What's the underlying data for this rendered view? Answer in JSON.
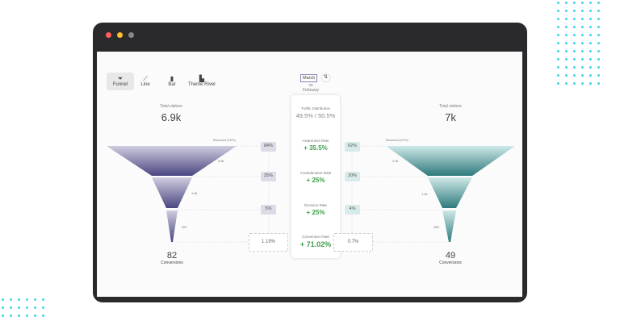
{
  "toolbar": {
    "tabs": [
      {
        "label": "Funnel",
        "icon": "funnel-icon",
        "active": true
      },
      {
        "label": "Line",
        "icon": "line-chart-icon"
      },
      {
        "label": "Bar",
        "icon": "bar-chart-icon"
      },
      {
        "label": "Theme River",
        "icon": "area-chart-icon"
      }
    ]
  },
  "compare": {
    "current": "March",
    "vs": "vs",
    "previous": "February"
  },
  "left": {
    "total_label": "Total visitors",
    "total": "6.9k",
    "bounced": "Bounced (15%)",
    "stages": [
      "5.8k",
      "1.8k",
      "357"
    ],
    "rates": [
      "84%",
      "25%",
      "5%"
    ],
    "conversion_rate": "1.19%",
    "conversions": "82",
    "conversions_label": "Conversions",
    "color": "#6b6898"
  },
  "right": {
    "total_label": "Total visitors",
    "total": "7k",
    "bounced": "Bounced (37%)",
    "stages": [
      "4.4k",
      "1.4k",
      "285"
    ],
    "rates": [
      "62%",
      "20%",
      "4%"
    ],
    "conversion_rate": "0.7%",
    "conversions": "49",
    "conversions_label": "Conversions",
    "color": "#4f9fa0"
  },
  "center": {
    "traffic_label": "Traffic Distribution",
    "traffic_value": "49.5% / 50.5%",
    "rates": [
      {
        "label": "Awareness Rate",
        "value": "+ 35.5%"
      },
      {
        "label": "Consideration Rate",
        "value": "+ 25%"
      },
      {
        "label": "Decision Rate",
        "value": "+ 25%"
      },
      {
        "label": "Conversion Rate",
        "value": "+ 71.02%"
      }
    ]
  }
}
